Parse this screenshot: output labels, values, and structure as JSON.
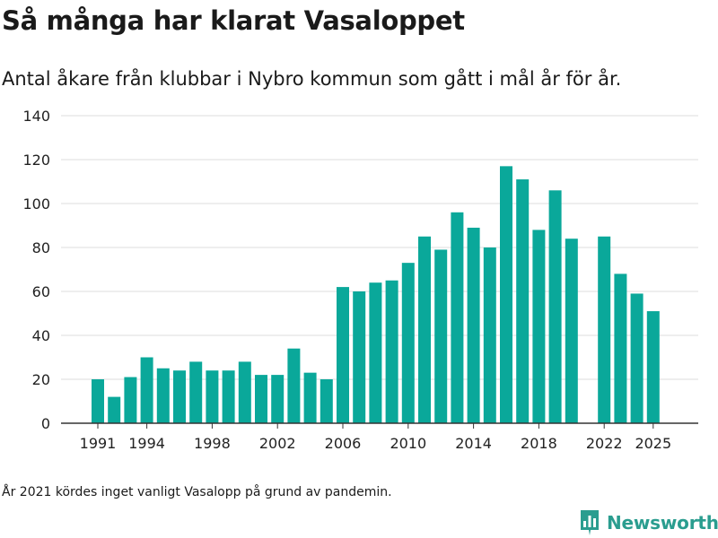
{
  "title": "Så många har klarat Vasaloppet",
  "subtitle": "Antal åkare från klubbar i Nybro kommun som gått i mål år för år.",
  "note": "År 2021 kördes inget vanligt Vasalopp på grund av pandemin.",
  "brand": {
    "name": "Newsworthy",
    "icon": "newsworthy-logo-icon",
    "color": "#2a9d8f"
  },
  "chart_data": {
    "type": "bar",
    "categories": [
      1991,
      1992,
      1993,
      1994,
      1995,
      1996,
      1997,
      1998,
      1999,
      2000,
      2001,
      2002,
      2003,
      2004,
      2005,
      2006,
      2007,
      2008,
      2009,
      2010,
      2011,
      2012,
      2013,
      2014,
      2015,
      2016,
      2017,
      2018,
      2019,
      2020,
      2021,
      2022,
      2023,
      2024,
      2025
    ],
    "values": [
      20,
      12,
      21,
      30,
      25,
      24,
      28,
      24,
      24,
      28,
      22,
      22,
      34,
      23,
      20,
      62,
      60,
      64,
      65,
      73,
      85,
      79,
      96,
      89,
      80,
      117,
      111,
      88,
      106,
      84,
      null,
      85,
      68,
      59,
      51
    ],
    "x_tick_labels": [
      "1991",
      "1994",
      "1998",
      "2002",
      "2006",
      "2010",
      "2014",
      "2018",
      "2022",
      "2025"
    ],
    "y_ticks": [
      0,
      20,
      40,
      60,
      80,
      100,
      120,
      140
    ],
    "ylim": [
      0,
      140
    ],
    "bar_color": "#0aa89a",
    "grid": true,
    "xlabel": "",
    "ylabel": ""
  }
}
